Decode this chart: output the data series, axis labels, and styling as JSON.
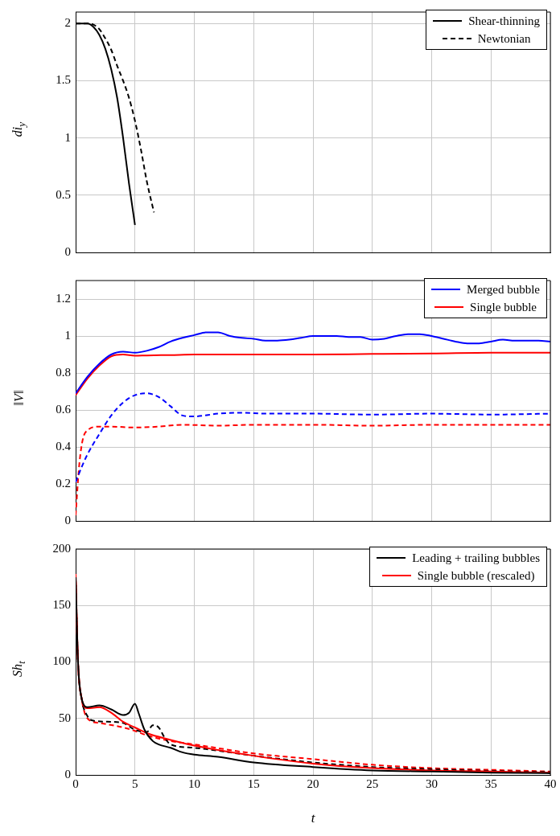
{
  "chart_data": [
    {
      "type": "line",
      "ylabel": "di$_{y}$",
      "xlim": [
        0,
        40
      ],
      "xticks": [
        0,
        5,
        10,
        15,
        20,
        25,
        30,
        35,
        40
      ],
      "ylim": [
        0,
        2.1
      ],
      "yticks": [
        0,
        0.5,
        1,
        1.5,
        2
      ],
      "grid": true,
      "legend": "top right",
      "tick_labels": "y",
      "marker": "none",
      "series": [
        {
          "name": "Shear-thinning",
          "color": "#000000",
          "line_style": "solid",
          "x": [
            0,
            1,
            1.5,
            2,
            2.5,
            3,
            3.5,
            4,
            4.5,
            5
          ],
          "values": [
            2,
            2,
            1.97,
            1.9,
            1.78,
            1.6,
            1.35,
            1.0,
            0.6,
            0.24
          ]
        },
        {
          "name": "Newtonian",
          "color": "#000000",
          "line_style": "dashed",
          "x": [
            0,
            1,
            1.5,
            2,
            2.5,
            3,
            3.5,
            4,
            4.5,
            5,
            5.5,
            6,
            6.6
          ],
          "values": [
            2,
            2,
            1.99,
            1.95,
            1.87,
            1.77,
            1.63,
            1.5,
            1.35,
            1.15,
            0.9,
            0.62,
            0.35
          ]
        }
      ]
    },
    {
      "type": "line",
      "ylabel": "‖V‖",
      "xlim": [
        0,
        40
      ],
      "xticks": [
        0,
        5,
        10,
        15,
        20,
        25,
        30,
        35,
        40
      ],
      "ylim": [
        0,
        1.3
      ],
      "yticks": [
        0,
        0.2,
        0.4,
        0.6,
        0.8,
        1,
        1.2
      ],
      "grid": true,
      "legend": "top right",
      "tick_labels": "y",
      "marker": "none",
      "series": [
        {
          "name": "Merged bubble",
          "color": "#0000ff",
          "line_style": "solid",
          "x": [
            0,
            1,
            2,
            3,
            4,
            5,
            6,
            7,
            8,
            9,
            10,
            11,
            12,
            13,
            14,
            15,
            16,
            17,
            18,
            19,
            20,
            21,
            22,
            23,
            24,
            25,
            26,
            27,
            28,
            29,
            30,
            31,
            32,
            33,
            34,
            35,
            36,
            37,
            38,
            39,
            40
          ],
          "values": [
            0.69,
            0.78,
            0.85,
            0.9,
            0.915,
            0.91,
            0.92,
            0.94,
            0.97,
            0.99,
            1.005,
            1.02,
            1.02,
            1.0,
            0.99,
            0.985,
            0.975,
            0.975,
            0.98,
            0.99,
            1.0,
            1.0,
            1.0,
            0.995,
            0.995,
            0.98,
            0.985,
            1.0,
            1.01,
            1.01,
            1.0,
            0.985,
            0.97,
            0.96,
            0.96,
            0.97,
            0.98,
            0.975,
            0.975,
            0.975,
            0.97
          ]
        },
        {
          "name": "Single bubble",
          "color": "#ff0000",
          "line_style": "solid",
          "x": [
            0,
            1,
            2,
            3,
            4,
            5,
            6,
            8,
            10,
            15,
            20,
            25,
            30,
            35,
            40
          ],
          "values": [
            0.68,
            0.77,
            0.84,
            0.89,
            0.9,
            0.893,
            0.895,
            0.897,
            0.9,
            0.9,
            0.9,
            0.903,
            0.905,
            0.91,
            0.91
          ]
        },
        {
          "color": "#0000ff",
          "line_style": "dashed",
          "x": [
            0,
            0.5,
            1,
            2,
            3,
            4,
            5,
            6,
            7,
            8,
            9,
            10,
            12,
            14,
            16,
            20,
            25,
            30,
            35,
            40
          ],
          "values": [
            0.21,
            0.29,
            0.36,
            0.47,
            0.57,
            0.64,
            0.68,
            0.69,
            0.67,
            0.62,
            0.57,
            0.565,
            0.58,
            0.585,
            0.58,
            0.58,
            0.575,
            0.58,
            0.575,
            0.58
          ]
        },
        {
          "color": "#ff0000",
          "line_style": "dashed",
          "x": [
            0,
            0.3,
            0.6,
            1,
            2,
            3,
            5,
            7,
            9,
            12,
            15,
            20,
            25,
            30,
            40
          ],
          "values": [
            0.03,
            0.3,
            0.44,
            0.49,
            0.51,
            0.51,
            0.505,
            0.51,
            0.52,
            0.515,
            0.52,
            0.52,
            0.515,
            0.52,
            0.52
          ]
        }
      ]
    },
    {
      "type": "line",
      "xlabel": "t",
      "ylabel": "Sh$_{t}$",
      "xlim": [
        0,
        40
      ],
      "xticks": [
        0,
        5,
        10,
        15,
        20,
        25,
        30,
        35,
        40
      ],
      "ylim": [
        0,
        200
      ],
      "yticks": [
        0,
        50,
        100,
        150,
        200
      ],
      "grid": true,
      "legend": "top right",
      "marker": "none",
      "series": [
        {
          "name": "Leading + trailing bubbles",
          "color": "#000000",
          "line_style": "solid",
          "x": [
            0,
            0.2,
            0.5,
            1,
            2,
            3,
            4,
            4.5,
            5,
            5.3,
            5.8,
            6.5,
            7,
            8,
            9,
            10,
            12,
            15,
            20,
            25,
            30,
            35,
            40
          ],
          "values": [
            175,
            100,
            68,
            60,
            61.5,
            58,
            53,
            55,
            63,
            55,
            40,
            30,
            27,
            24,
            20,
            18,
            16,
            11,
            7,
            4,
            3,
            2,
            1.5
          ]
        },
        {
          "name": "Single bubble (rescaled)",
          "color": "#ff0000",
          "line_style": "solid",
          "x": [
            0,
            0.2,
            0.5,
            1,
            2,
            3,
            4,
            5,
            6,
            8,
            10,
            15,
            20,
            25,
            30,
            35,
            40
          ],
          "values": [
            178,
            100,
            68,
            59,
            60,
            55,
            47,
            42,
            37,
            31,
            26,
            17,
            10,
            6,
            4,
            3,
            2
          ]
        },
        {
          "color": "#000000",
          "line_style": "dashed",
          "x": [
            0,
            0.2,
            0.5,
            1,
            1.5,
            3,
            4,
            5,
            6,
            6.5,
            7,
            7.5,
            8,
            10,
            15,
            20,
            25,
            30,
            35,
            40
          ],
          "values": [
            175,
            100,
            68,
            52,
            48,
            47,
            46,
            40,
            38,
            44,
            42,
            33,
            27,
            24,
            17,
            11,
            7,
            5,
            3.5,
            2.5
          ]
        },
        {
          "color": "#ff0000",
          "line_style": "dashed",
          "x": [
            0,
            0.2,
            0.5,
            1,
            2,
            4,
            5,
            6,
            8,
            10,
            15,
            20,
            25,
            30,
            35,
            40
          ],
          "values": [
            178,
            100,
            68,
            50,
            46,
            42,
            39,
            35,
            30,
            27,
            19,
            14,
            9,
            6,
            4.5,
            3
          ]
        }
      ]
    }
  ]
}
